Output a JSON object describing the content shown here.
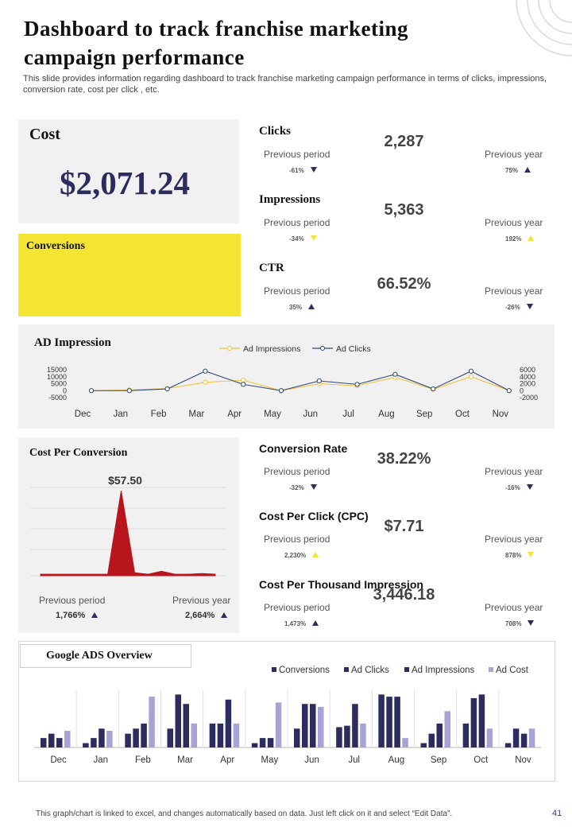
{
  "header": {
    "title": "Dashboard to track franchise marketing campaign performance",
    "subtitle": "This slide provides information regarding dashboard to track franchise marketing campaign performance in terms of clicks, impressions, conversion rate, cost per click , etc."
  },
  "cost": {
    "label": "Cost",
    "value": "$2,071.24"
  },
  "conversions": {
    "label": "Conversions"
  },
  "kpis_top": [
    {
      "title": "Clicks",
      "value": "2,287",
      "prev_period_label": "Previous period",
      "prev_period_pct": "-61%",
      "prev_period_dir": "down",
      "prev_year_label": "Previous year",
      "prev_year_pct": "75%",
      "prev_year_dir": "up"
    },
    {
      "title": "Impressions",
      "value": "5,363",
      "prev_period_label": "Previous period",
      "prev_period_pct": "-34%",
      "prev_period_dir": "down-yellow",
      "prev_year_label": "Previous year",
      "prev_year_pct": "192%",
      "prev_year_dir": "up-yellow"
    },
    {
      "title": "CTR",
      "value": "66.52%",
      "prev_period_label": "Previous period",
      "prev_period_pct": "35%",
      "prev_period_dir": "up",
      "prev_year_label": "Previous year",
      "prev_year_pct": "-26%",
      "prev_year_dir": "down"
    }
  ],
  "ad_impression": {
    "title": "AD Impression",
    "legend": [
      "Ad Impressions",
      "Ad Clicks"
    ]
  },
  "cost_per_conversion": {
    "title": "Cost Per Conversion",
    "value": "$57.50",
    "prev_period_label": "Previous period",
    "prev_period_pct": "1,766%",
    "prev_year_label": "Previous year",
    "prev_year_pct": "2,664%"
  },
  "kpis_bottom": [
    {
      "title": "Conversion Rate",
      "value": "38.22%",
      "prev_period_label": "Previous period",
      "prev_period_pct": "-32%",
      "prev_period_dir": "down",
      "prev_year_label": "Previous year",
      "prev_year_pct": "-16%",
      "prev_year_dir": "down"
    },
    {
      "title": "Cost Per Click (CPC)",
      "value": "$7.71",
      "prev_period_label": "Previous period",
      "prev_period_pct": "2,230%",
      "prev_period_dir": "up-yellow",
      "prev_year_label": "Previous year",
      "prev_year_pct": "878%",
      "prev_year_dir": "down-yellow"
    },
    {
      "title": "Cost Per Thousand Impression",
      "value": "3,446.18",
      "prev_period_label": "Previous period",
      "prev_period_pct": "1,473%",
      "prev_period_dir": "up",
      "prev_year_label": "Previous year",
      "prev_year_pct": "708%",
      "prev_year_dir": "down"
    }
  ],
  "google_ads": {
    "title": "Google ADS Overview"
  },
  "footer": {
    "note": "This graph/chart is linked to excel, and changes automatically based on data. Just left click on it and select “Edit Data”.",
    "page": "41"
  },
  "colors": {
    "navy": "#2d2c5e",
    "yellow": "#f5e533",
    "lavender": "#a7a3d4",
    "red": "#b8151d",
    "line_yellow": "#f0c23a",
    "line_navy": "#2f4a7a"
  },
  "chart_data": [
    {
      "type": "line",
      "title": "AD Impression",
      "categories": [
        "Dec",
        "Jan",
        "Feb",
        "Mar",
        "Apr",
        "May",
        "Jun",
        "Jul",
        "Aug",
        "Sep",
        "Oct",
        "Nov"
      ],
      "series": [
        {
          "name": "Ad Impressions",
          "axis": "left",
          "values": [
            0,
            500,
            1500,
            6000,
            7500,
            0,
            5000,
            3500,
            9500,
            1000,
            10000,
            0
          ]
        },
        {
          "name": "Ad Clicks",
          "axis": "right",
          "values": [
            0,
            0,
            500,
            5600,
            1800,
            0,
            2800,
            1800,
            4700,
            500,
            5600,
            0
          ]
        }
      ],
      "y_left": {
        "ticks": [
          "15000",
          "10000",
          "5000",
          "0",
          "-5000"
        ],
        "ylim": [
          -5000,
          15000
        ]
      },
      "y_right": {
        "ticks": [
          "6000",
          "4000",
          "2000",
          "0",
          "-2000"
        ],
        "ylim": [
          -2000,
          6000
        ]
      },
      "legend": "top"
    },
    {
      "type": "area",
      "title": "Cost Per Conversion",
      "x": [
        1,
        2,
        3,
        4,
        5,
        6,
        7,
        8,
        9,
        10,
        11,
        12,
        13,
        14
      ],
      "values": [
        1,
        1,
        1,
        1,
        1,
        1,
        57.5,
        2,
        1,
        3,
        1,
        1,
        1.5,
        1
      ],
      "peak_label": "$57.50",
      "ylim": [
        0,
        70
      ]
    },
    {
      "type": "bar",
      "title": "Google ADS Overview",
      "categories": [
        "Dec",
        "Jan",
        "Feb",
        "Mar",
        "Apr",
        "May",
        "Jun",
        "Jul",
        "Aug",
        "Sep",
        "Oct",
        "Nov"
      ],
      "series": [
        {
          "name": "Conversions",
          "values": [
            13,
            6,
            19,
            26,
            33,
            6,
            26,
            28,
            73,
            6,
            33,
            6
          ]
        },
        {
          "name": "Ad Clicks",
          "values": [
            19,
            13,
            26,
            73,
            33,
            13,
            60,
            30,
            70,
            19,
            68,
            26
          ]
        },
        {
          "name": "Ad Impressions",
          "values": [
            13,
            26,
            33,
            60,
            66,
            13,
            60,
            60,
            70,
            33,
            73,
            19
          ]
        },
        {
          "name": "Ad Cost",
          "values": [
            23,
            23,
            70,
            33,
            33,
            62,
            56,
            33,
            13,
            50,
            26,
            26
          ]
        }
      ],
      "ylim": [
        0,
        80
      ],
      "legend": "top-right"
    }
  ]
}
